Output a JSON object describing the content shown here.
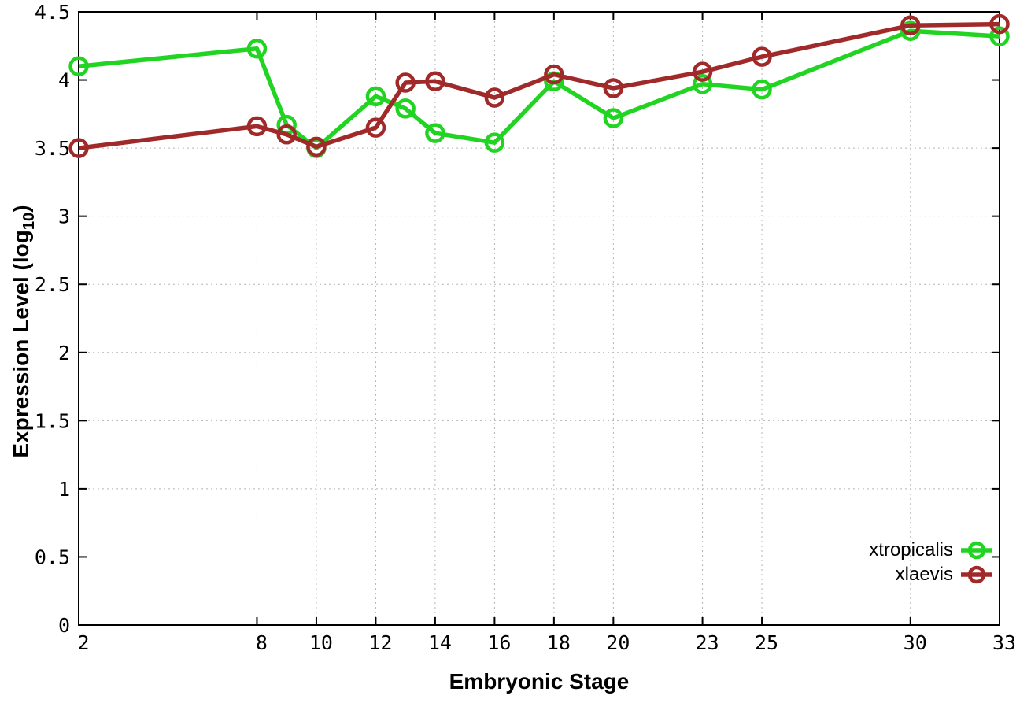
{
  "chart_data": {
    "type": "line",
    "title": "",
    "xlabel": "Embryonic Stage",
    "ylabel": "Expression Level (log10)",
    "ylabel_parts": {
      "prefix": "Expression Level (log",
      "sub": "10",
      "suffix": ")"
    },
    "x": [
      2,
      8,
      9,
      10,
      12,
      13,
      14,
      16,
      18,
      20,
      23,
      25,
      30,
      33
    ],
    "series": [
      {
        "name": "xtropicalis",
        "color": "#22d422",
        "values": [
          4.1,
          4.23,
          3.67,
          3.5,
          3.88,
          3.79,
          3.61,
          3.54,
          3.99,
          3.72,
          3.97,
          3.93,
          4.36,
          4.32
        ]
      },
      {
        "name": "xlaevis",
        "color": "#a02a2a",
        "values": [
          3.5,
          3.66,
          3.6,
          3.51,
          3.65,
          3.98,
          3.99,
          3.87,
          4.04,
          3.94,
          4.06,
          4.17,
          4.4,
          4.41
        ]
      }
    ],
    "xlim": [
      2,
      33
    ],
    "ylim": [
      0,
      4.5
    ],
    "xticks": [
      2,
      8,
      10,
      12,
      14,
      16,
      18,
      20,
      23,
      25,
      30,
      33
    ],
    "xtick_labels": [
      "2",
      "8",
      "10",
      "12",
      "14",
      "16",
      "18",
      "20",
      "23",
      "25",
      "30",
      "33"
    ],
    "yticks": [
      0,
      0.5,
      1,
      1.5,
      2,
      2.5,
      3,
      3.5,
      4,
      4.5
    ],
    "ytick_labels": [
      "0",
      "0.5",
      "1",
      "1.5",
      "2",
      "2.5",
      "3",
      "3.5",
      "4",
      "4.5"
    ],
    "grid": "dotted",
    "legend_position": "bottom-right-inside",
    "legend": [
      {
        "label": "xtropicalis",
        "color": "#22d422"
      },
      {
        "label": "xlaevis",
        "color": "#a02a2a"
      }
    ]
  },
  "style": {
    "background": "#ffffff",
    "axis_color": "#000000",
    "grid_color": "#b5b5b5"
  }
}
